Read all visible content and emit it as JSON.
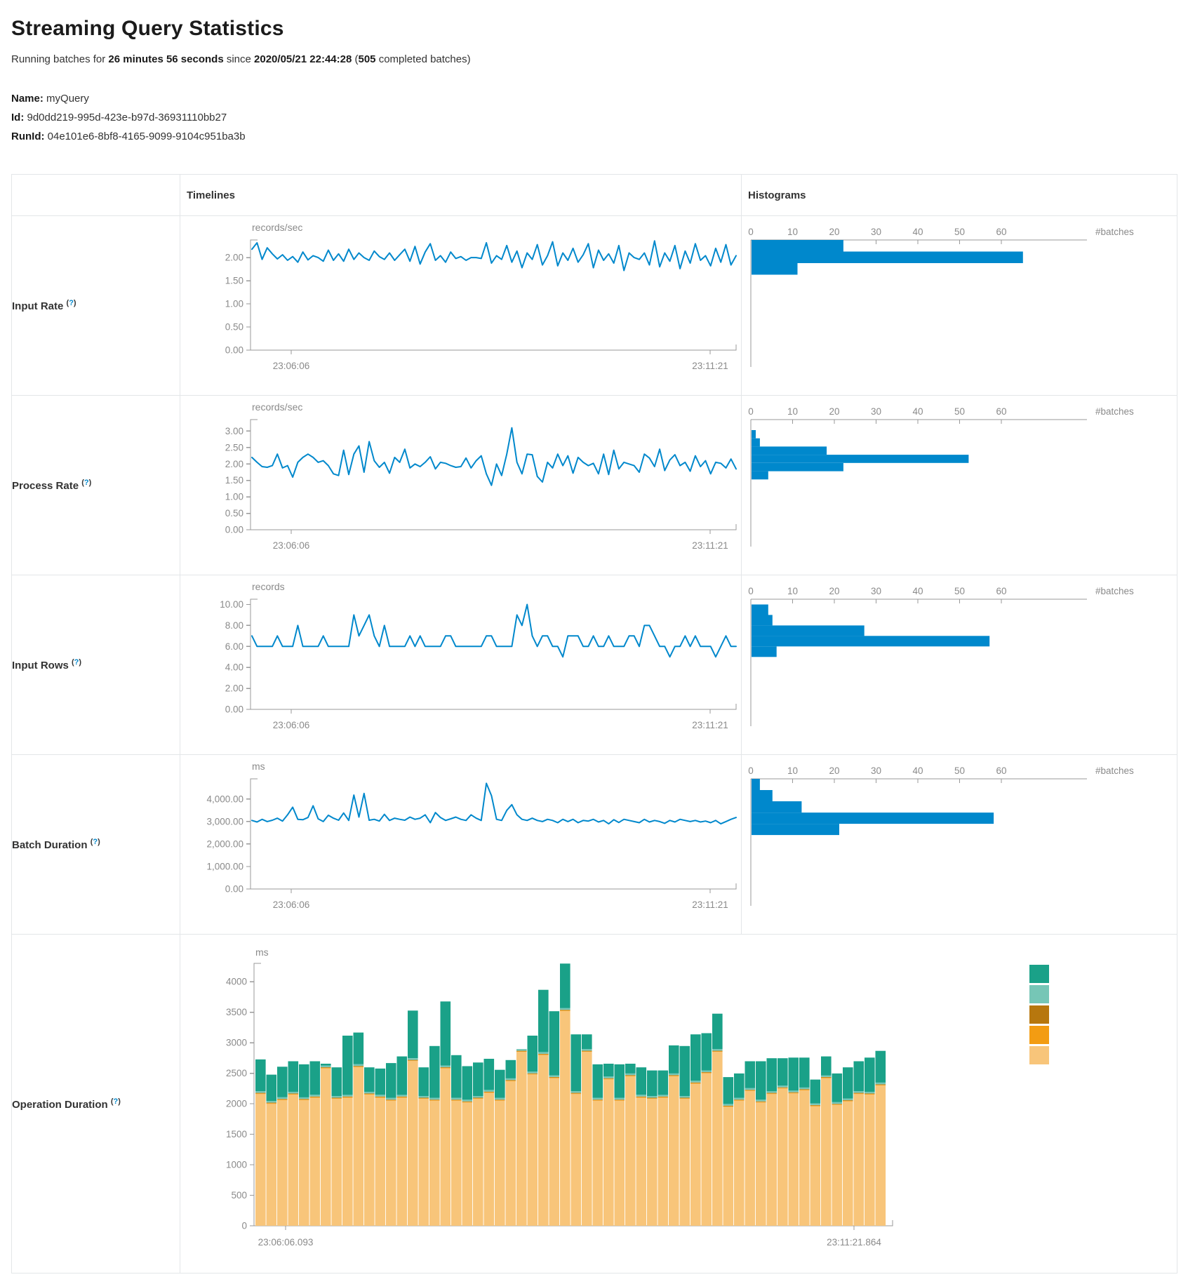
{
  "page": {
    "title": "Streaming Query Statistics",
    "running": {
      "prefix": "Running batches for ",
      "duration": "26 minutes 56 seconds",
      "mid": " since ",
      "since": "2020/05/21 22:44:28",
      "open": " (",
      "batches": "505",
      "suffix": " completed batches)"
    },
    "name_label": "Name:",
    "name_value": "myQuery",
    "id_label": "Id:",
    "id_value": "9d0dd219-995d-423e-b97d-36931110bb27",
    "runid_label": "RunId:",
    "runid_value": "04e101e6-8bf8-4165-9099-9104c951ba3b"
  },
  "table": {
    "headers": {
      "timelines": "Timelines",
      "histograms": "Histograms"
    },
    "help": {
      "open": "(",
      "q": "?",
      "close": ")"
    }
  },
  "colors": {
    "line_blue": "#0088CC",
    "hist_blue": "#0088CC",
    "axis_gray": "#999999",
    "tick_text_gray": "#8a8a8a",
    "table_border": "#e3e6e8",
    "help_link": "#0088CC"
  },
  "chart_data": [
    {
      "type": "line",
      "name": "input-rate",
      "row_label": "Input Rate",
      "unit": "records/sec",
      "x_start_label": "23:06:06",
      "x_end_label": "23:11:21",
      "y_max": 2.38,
      "y_ticks": [
        {
          "v": 0,
          "label": "0.00"
        },
        {
          "v": 0.5,
          "label": "0.50"
        },
        {
          "v": 1,
          "label": "1.00"
        },
        {
          "v": 1.5,
          "label": "1.50"
        },
        {
          "v": 2,
          "label": "2.00"
        }
      ],
      "values": [
        2.18,
        2.32,
        1.96,
        2.21,
        2.08,
        1.97,
        2.06,
        1.94,
        2.02,
        1.9,
        2.12,
        1.95,
        2.04,
        2.0,
        1.92,
        2.16,
        1.94,
        2.08,
        1.92,
        2.18,
        1.96,
        2.1,
        2.0,
        1.94,
        2.14,
        2.02,
        1.96,
        2.1,
        1.94,
        2.06,
        2.18,
        1.92,
        2.24,
        1.86,
        2.12,
        2.3,
        1.94,
        2.04,
        1.9,
        2.12,
        1.98,
        2.02,
        1.94,
        2.0,
        2.0,
        1.98,
        2.32,
        1.88,
        2.04,
        1.96,
        2.26,
        1.9,
        2.14,
        1.78,
        2.1,
        1.96,
        2.28,
        1.84,
        2.04,
        2.34,
        1.82,
        2.1,
        1.94,
        2.2,
        1.9,
        2.06,
        2.3,
        1.78,
        2.16,
        1.94,
        2.08,
        1.88,
        2.26,
        1.72,
        2.1,
        2.0,
        1.96,
        2.1,
        1.84,
        2.36,
        1.8,
        2.1,
        1.92,
        2.26,
        1.76,
        2.14,
        1.88,
        2.3,
        1.94,
        2.04,
        1.82,
        2.2,
        1.9,
        2.28,
        1.84,
        2.04
      ],
      "histogram": {
        "x_ticks": [
          "0",
          "10",
          "20",
          "30",
          "40",
          "50",
          "60"
        ],
        "axis_label": "#batches",
        "bins": [
          {
            "from": 2.13,
            "to": 2.38,
            "count": 22
          },
          {
            "from": 1.88,
            "to": 2.13,
            "count": 65
          },
          {
            "from": 1.63,
            "to": 1.88,
            "count": 11
          }
        ]
      }
    },
    {
      "type": "line",
      "name": "process-rate",
      "row_label": "Process Rate",
      "unit": "records/sec",
      "x_start_label": "23:06:06",
      "x_end_label": "23:11:21",
      "y_max": 3.35,
      "y_ticks": [
        {
          "v": 0,
          "label": "0.00"
        },
        {
          "v": 0.5,
          "label": "0.50"
        },
        {
          "v": 1,
          "label": "1.00"
        },
        {
          "v": 1.5,
          "label": "1.50"
        },
        {
          "v": 2,
          "label": "2.00"
        },
        {
          "v": 2.5,
          "label": "2.50"
        },
        {
          "v": 3,
          "label": "3.00"
        }
      ],
      "values": [
        2.2,
        2.05,
        1.92,
        1.9,
        1.95,
        2.3,
        1.88,
        1.95,
        1.6,
        2.05,
        2.2,
        2.3,
        2.2,
        2.05,
        2.1,
        1.95,
        1.7,
        1.65,
        2.42,
        1.68,
        2.3,
        2.55,
        1.75,
        2.68,
        2.1,
        1.9,
        2.05,
        1.72,
        2.2,
        2.05,
        2.45,
        1.88,
        2.0,
        1.92,
        2.05,
        2.22,
        1.85,
        2.05,
        2.02,
        1.95,
        1.9,
        1.92,
        2.18,
        1.88,
        2.1,
        2.25,
        1.7,
        1.35,
        2.0,
        1.65,
        2.3,
        3.1,
        2.05,
        1.7,
        2.3,
        2.28,
        1.62,
        1.45,
        2.05,
        1.88,
        2.3,
        1.95,
        2.25,
        1.72,
        2.2,
        2.05,
        1.95,
        2.02,
        1.7,
        2.3,
        1.68,
        2.42,
        1.85,
        2.05,
        2.0,
        1.95,
        1.75,
        2.3,
        2.18,
        1.92,
        2.45,
        1.8,
        2.12,
        2.28,
        1.95,
        2.05,
        1.78,
        2.25,
        1.92,
        2.1,
        1.7,
        2.05,
        2.02,
        1.88,
        2.15,
        1.85
      ],
      "histogram": {
        "x_ticks": [
          "0",
          "10",
          "20",
          "30",
          "40",
          "50",
          "60"
        ],
        "axis_label": "#batches",
        "bins": [
          {
            "from": 2.78,
            "to": 3.03,
            "count": 1
          },
          {
            "from": 2.53,
            "to": 2.78,
            "count": 2
          },
          {
            "from": 2.28,
            "to": 2.53,
            "count": 18
          },
          {
            "from": 2.03,
            "to": 2.28,
            "count": 52
          },
          {
            "from": 1.78,
            "to": 2.03,
            "count": 22
          },
          {
            "from": 1.53,
            "to": 1.78,
            "count": 4
          }
        ]
      }
    },
    {
      "type": "line",
      "name": "input-rows",
      "row_label": "Input Rows",
      "unit": "records",
      "x_start_label": "23:06:06",
      "x_end_label": "23:11:21",
      "y_max": 10.5,
      "y_ticks": [
        {
          "v": 0,
          "label": "0.00"
        },
        {
          "v": 2,
          "label": "2.00"
        },
        {
          "v": 4,
          "label": "4.00"
        },
        {
          "v": 6,
          "label": "6.00"
        },
        {
          "v": 8,
          "label": "8.00"
        },
        {
          "v": 10,
          "label": "10.00"
        }
      ],
      "values": [
        7,
        6,
        6,
        6,
        6,
        7,
        6,
        6,
        6,
        8,
        6,
        6,
        6,
        6,
        7,
        6,
        6,
        6,
        6,
        6,
        9,
        7,
        8,
        9,
        7,
        6,
        8,
        6,
        6,
        6,
        6,
        7,
        6,
        7,
        6,
        6,
        6,
        6,
        7,
        7,
        6,
        6,
        6,
        6,
        6,
        6,
        7,
        7,
        6,
        6,
        6,
        6,
        9,
        8,
        10,
        7,
        6,
        7,
        7,
        6,
        6,
        5,
        7,
        7,
        7,
        6,
        6,
        7,
        6,
        6,
        7,
        6,
        6,
        6,
        7,
        7,
        6,
        8,
        8,
        7,
        6,
        6,
        5,
        6,
        6,
        7,
        6,
        7,
        6,
        6,
        6,
        5,
        6,
        7,
        6,
        6
      ],
      "histogram": {
        "x_ticks": [
          "0",
          "10",
          "20",
          "30",
          "40",
          "50",
          "60"
        ],
        "axis_label": "#batches",
        "bins": [
          {
            "from": 9,
            "to": 10,
            "count": 4
          },
          {
            "from": 8,
            "to": 9,
            "count": 5
          },
          {
            "from": 7,
            "to": 8,
            "count": 27
          },
          {
            "from": 6,
            "to": 7,
            "count": 57
          },
          {
            "from": 5,
            "to": 6,
            "count": 6
          }
        ]
      }
    },
    {
      "type": "line",
      "name": "batch-duration",
      "row_label": "Batch Duration",
      "unit": "ms",
      "x_start_label": "23:06:06",
      "x_end_label": "23:11:21",
      "y_max": 4900,
      "y_ticks": [
        {
          "v": 0,
          "label": "0.00"
        },
        {
          "v": 1000,
          "label": "1,000.00"
        },
        {
          "v": 2000,
          "label": "2,000.00"
        },
        {
          "v": 3000,
          "label": "3,000.00"
        },
        {
          "v": 4000,
          "label": "4,000.00"
        }
      ],
      "values": [
        3050,
        2980,
        3100,
        3000,
        3060,
        3150,
        3020,
        3300,
        3640,
        3100,
        3080,
        3180,
        3700,
        3120,
        3000,
        3280,
        3150,
        3060,
        3380,
        3050,
        4180,
        3200,
        4250,
        3060,
        3100,
        3020,
        3320,
        3050,
        3150,
        3100,
        3060,
        3200,
        3100,
        3150,
        3300,
        2950,
        3400,
        3180,
        3050,
        3120,
        3200,
        3100,
        3050,
        3300,
        3150,
        3050,
        4700,
        4150,
        3100,
        3050,
        3500,
        3750,
        3300,
        3100,
        3050,
        3150,
        3050,
        3000,
        3100,
        3050,
        2950,
        3100,
        3000,
        3100,
        2950,
        3050,
        3020,
        3100,
        2980,
        3050,
        2900,
        3080,
        2960,
        3100,
        3050,
        3000,
        2950,
        3100,
        2980,
        3050,
        3000,
        2920,
        3050,
        2980,
        3100,
        3050,
        3000,
        3050,
        2980,
        3020,
        2950,
        3050,
        2900,
        3000,
        3100,
        3180
      ],
      "histogram": {
        "x_ticks": [
          "0",
          "10",
          "20",
          "30",
          "40",
          "50",
          "60"
        ],
        "axis_label": "#batches",
        "bins": [
          {
            "from": 4400,
            "to": 4900,
            "count": 2
          },
          {
            "from": 3900,
            "to": 4400,
            "count": 5
          },
          {
            "from": 3400,
            "to": 3900,
            "count": 12
          },
          {
            "from": 2900,
            "to": 3400,
            "count": 58
          },
          {
            "from": 2400,
            "to": 2900,
            "count": 21
          }
        ]
      }
    },
    {
      "type": "stacked-bar",
      "name": "operation-duration",
      "row_label": "Operation Duration",
      "unit": "ms",
      "x_start_label": "23:06:06.093",
      "x_end_label": "23:11:21.864",
      "y_max": 4300,
      "y_ticks": [
        {
          "v": 0,
          "label": "0"
        },
        {
          "v": 500,
          "label": "500"
        },
        {
          "v": 1000,
          "label": "1000"
        },
        {
          "v": 1500,
          "label": "1500"
        },
        {
          "v": 2000,
          "label": "2000"
        },
        {
          "v": 2500,
          "label": "2500"
        },
        {
          "v": 3000,
          "label": "3000"
        },
        {
          "v": 3500,
          "label": "3500"
        },
        {
          "v": 4000,
          "label": "4000"
        }
      ],
      "series": [
        {
          "name": "light-orange-bottom",
          "color": "#f8c57a",
          "values": [
            2160,
            2000,
            2060,
            2150,
            2060,
            2100,
            2580,
            2080,
            2100,
            2600,
            2150,
            2100,
            2050,
            2100,
            2700,
            2080,
            2050,
            2580,
            2050,
            2020,
            2080,
            2180,
            2050,
            2370,
            2850,
            2480,
            2800,
            2420,
            3520,
            2160,
            2850,
            2050,
            2400,
            2050,
            2450,
            2100,
            2080,
            2100,
            2450,
            2080,
            2330,
            2500,
            2850,
            1950,
            2050,
            2210,
            2020,
            2160,
            2250,
            2170,
            2220,
            1960,
            2420,
            1980,
            2040,
            2160,
            2150,
            2300
          ]
        },
        {
          "name": "orange-sliver",
          "color": "#f39c12",
          "uniform": 10
        },
        {
          "name": "dark-orange-sliver",
          "color": "#b7770e",
          "uniform": 8
        },
        {
          "name": "light-teal-sliver",
          "color": "#76c6b6",
          "uniform": 28
        },
        {
          "name": "teal-top",
          "color": "#1aa188",
          "values": [
            520,
            430,
            500,
            500,
            540,
            550,
            30,
            470,
            970,
            520,
            400,
            430,
            570,
            630,
            780,
            470,
            850,
            1050,
            700,
            550,
            550,
            510,
            460,
            300,
            0,
            590,
            1020,
            1050,
            730,
            930,
            240,
            550,
            210,
            550,
            160,
            450,
            420,
            400,
            460,
            820,
            760,
            610,
            580,
            440,
            400,
            440,
            630,
            540,
            450,
            540,
            490,
            390,
            310,
            470,
            510,
            490,
            560,
            520
          ]
        }
      ],
      "legend_colors": [
        "#1aa188",
        "#76c6b6",
        "#b7770e",
        "#f39c12",
        "#f8c57a"
      ]
    }
  ]
}
